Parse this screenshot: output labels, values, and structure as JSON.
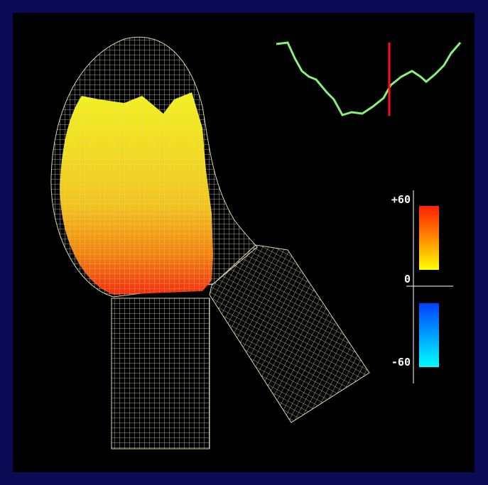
{
  "colorbar": {
    "max_label": "+60",
    "zero_label": "0",
    "min_label": "-60"
  }
}
